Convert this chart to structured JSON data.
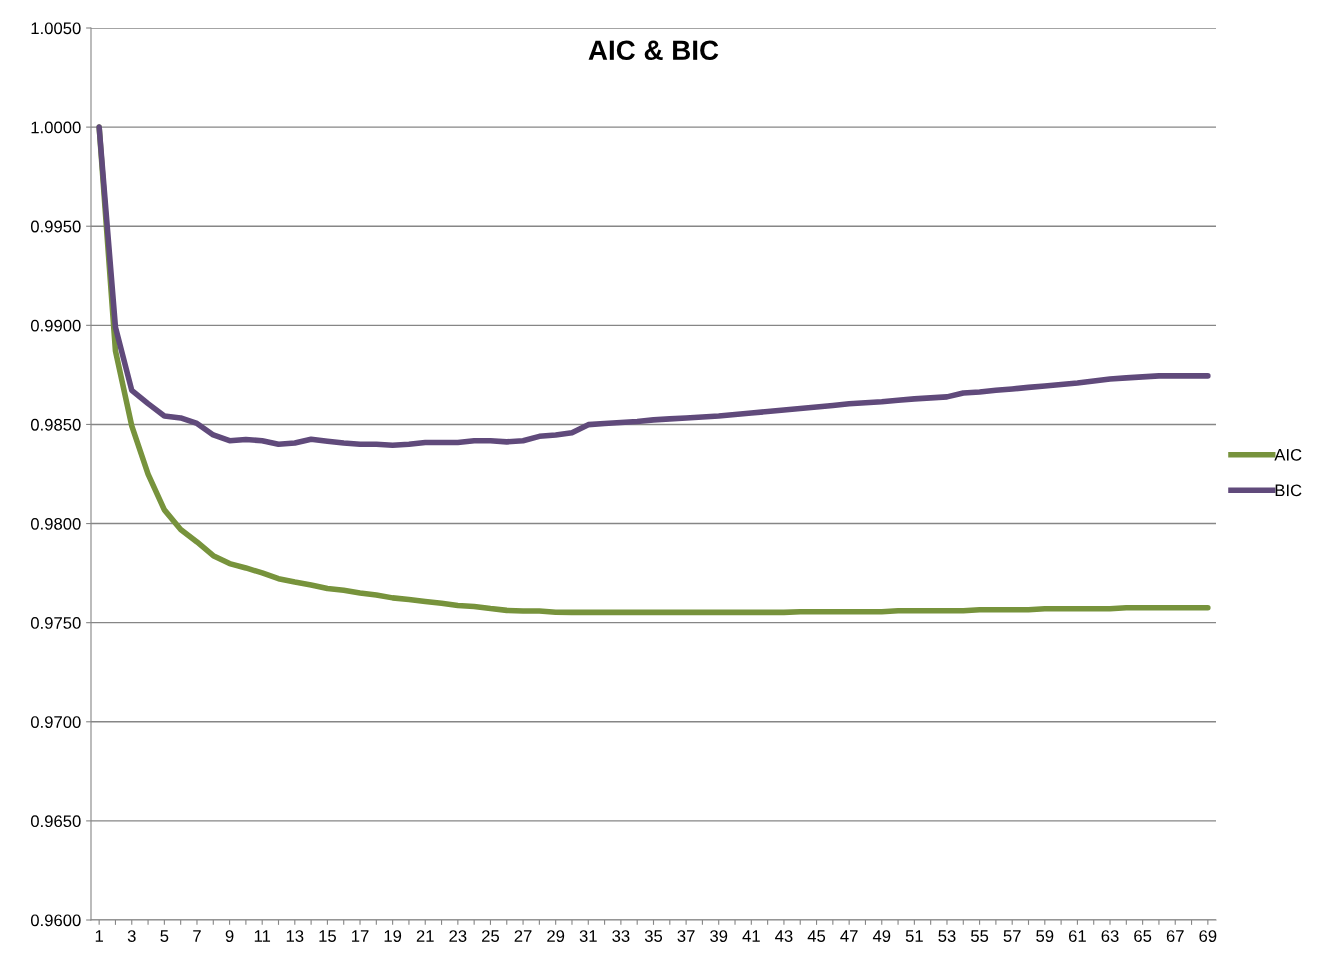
{
  "chart_data": {
    "type": "line",
    "title": "AIC & BIC",
    "categories": [
      "1",
      null,
      "3",
      null,
      "5",
      null,
      "7",
      null,
      "9",
      null,
      "11",
      null,
      "13",
      null,
      "15",
      null,
      "17",
      null,
      "19",
      null,
      "21",
      null,
      "23",
      null,
      "25",
      null,
      "27",
      null,
      "29",
      null,
      "31",
      null,
      "33",
      null,
      "35",
      null,
      "37",
      null,
      "39",
      null,
      "41",
      null,
      "43",
      null,
      "45",
      null,
      "47",
      null,
      "49",
      null,
      "51",
      null,
      "53",
      null,
      "55",
      null,
      "57",
      null,
      "59",
      null,
      "61",
      null,
      "63",
      null,
      "65",
      null,
      "67",
      null,
      "69"
    ],
    "series": [
      {
        "name": "AIC",
        "color": "#77933c",
        "values": [
          1.0,
          0.98871,
          0.98493,
          0.98249,
          0.98069,
          0.9797,
          0.97907,
          0.97838,
          0.97798,
          0.97776,
          0.97751,
          0.97722,
          0.97705,
          0.9769,
          0.97672,
          0.97663,
          0.9765,
          0.9764,
          0.97625,
          0.97617,
          0.97607,
          0.97598,
          0.97587,
          0.97582,
          0.97571,
          0.97562,
          0.97559,
          0.97559,
          0.97553,
          0.97552,
          0.97552,
          0.97552,
          0.97552,
          0.97552,
          0.97552,
          0.97552,
          0.97552,
          0.97552,
          0.97552,
          0.97552,
          0.97552,
          0.97552,
          0.97552,
          0.97555,
          0.97555,
          0.97555,
          0.97555,
          0.97555,
          0.97555,
          0.9756,
          0.9756,
          0.9756,
          0.9756,
          0.9756,
          0.97565,
          0.97565,
          0.97565,
          0.97565,
          0.9757,
          0.9757,
          0.9757,
          0.9757,
          0.9757,
          0.97575,
          0.97575,
          0.97575,
          0.97575,
          0.97575,
          0.97575
        ]
      },
      {
        "name": "BIC",
        "color": "#604a7b",
        "values": [
          1.0,
          0.9899,
          0.98672,
          0.98605,
          0.98543,
          0.98533,
          0.98505,
          0.98447,
          0.98418,
          0.98424,
          0.98418,
          0.984,
          0.98406,
          0.98425,
          0.98415,
          0.98406,
          0.984,
          0.984,
          0.98395,
          0.984,
          0.98409,
          0.98409,
          0.98409,
          0.98418,
          0.98418,
          0.98412,
          0.98418,
          0.9844,
          0.98447,
          0.98458,
          0.98499,
          0.98505,
          0.9851,
          0.98515,
          0.98523,
          0.98528,
          0.98533,
          0.98538,
          0.98543,
          0.9855,
          0.98558,
          0.98565,
          0.98573,
          0.9858,
          0.98588,
          0.98596,
          0.98604,
          0.98609,
          0.98614,
          0.98622,
          0.98629,
          0.98634,
          0.98639,
          0.98659,
          0.98664,
          0.98672,
          0.98679,
          0.98687,
          0.98694,
          0.98702,
          0.98709,
          0.98719,
          0.98729,
          0.98735,
          0.9874,
          0.98745,
          0.98745,
          0.98745,
          0.98745
        ]
      }
    ],
    "ylim": [
      0.96,
      1.005
    ],
    "yticks": [
      {
        "value": 0.96,
        "label": "0.9600"
      },
      {
        "value": 0.965,
        "label": "0.9650"
      },
      {
        "value": 0.97,
        "label": "0.9700"
      },
      {
        "value": 0.975,
        "label": "0.9750"
      },
      {
        "value": 0.98,
        "label": "0.9800"
      },
      {
        "value": 0.985,
        "label": "0.9850"
      },
      {
        "value": 0.99,
        "label": "0.9900"
      },
      {
        "value": 0.995,
        "label": "0.9950"
      },
      {
        "value": 1.0,
        "label": "1.0000"
      },
      {
        "value": 1.005,
        "label": "1.0050"
      }
    ],
    "grid": "y",
    "legend": "right",
    "marker": "none",
    "line_style": "solid"
  }
}
